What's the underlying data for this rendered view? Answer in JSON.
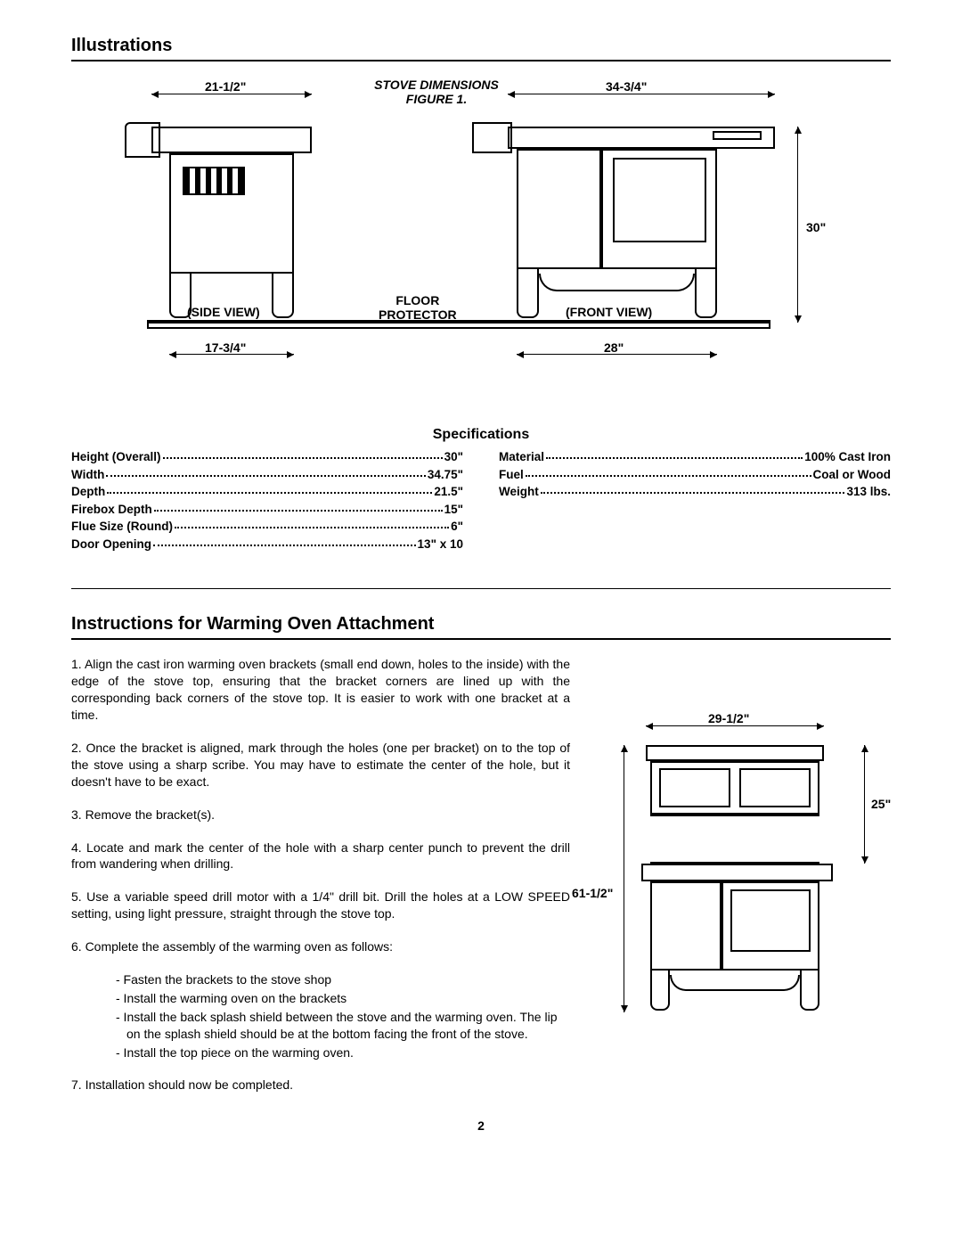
{
  "headings": {
    "illustrations": "Illustrations",
    "specifications": "Specifications",
    "instructions": "Instructions for Warming Oven Attachment"
  },
  "figure1": {
    "title_line1": "STOVE DIMENSIONS",
    "title_line2": "FIGURE 1.",
    "side_view_label": "(SIDE VIEW)",
    "front_view_label": "(FRONT VIEW)",
    "floor_protector_label1": "FLOOR",
    "floor_protector_label2": "PROTECTOR",
    "dim_top_left": "21-1/2\"",
    "dim_top_right": "34-3/4\"",
    "dim_right": "30\"",
    "dim_bottom_left": "17-3/4\"",
    "dim_bottom_right": "28\""
  },
  "specs_left": [
    {
      "label": "Height (Overall)",
      "value": "30\""
    },
    {
      "label": "Width",
      "value": "34.75\""
    },
    {
      "label": "Depth",
      "value": "21.5\""
    },
    {
      "label": "Firebox Depth",
      "value": "15\""
    },
    {
      "label": "Flue Size (Round)",
      "value": "6\""
    },
    {
      "label": "Door Opening",
      "value": "13\"  x  10"
    }
  ],
  "specs_right": [
    {
      "label": "Material",
      "value": "100% Cast Iron"
    },
    {
      "label": "Fuel",
      "value": "Coal or Wood"
    },
    {
      "label": "Weight",
      "value": "313 lbs."
    }
  ],
  "instructions": {
    "step1": "1.   Align the cast iron warming oven brackets (small end down, holes to the inside) with the edge of the stove top, ensuring that the bracket corners are lined up with the corresponding back corners of the stove top. It is easier to work with one bracket at a time.",
    "step2": "2.   Once the bracket is aligned, mark through the holes (one per bracket) on to the top of the stove using a sharp scribe.  You may have to estimate the center of the hole, but it doesn't have to be exact.",
    "step3": "3.   Remove the bracket(s).",
    "step4": "4.   Locate and mark the center of the hole with a sharp center punch to prevent the drill from wandering when drilling.",
    "step5": "5.   Use a variable speed drill motor with a 1/4\" drill bit.  Drill the holes at a LOW SPEED setting, using light pressure, straight through the stove top.",
    "step6_intro": "6.   Complete the assembly of the warming oven as follows:",
    "step6_items": [
      "-  Fasten the brackets to the stove shop",
      "-  Install the warming oven on the brackets",
      "-  Install the back splash shield between the stove and the warming oven.  The lip on the splash shield should be at the bottom facing the front of the stove.",
      "-  Install the top piece on the warming oven."
    ],
    "step7": "7.   Installation should now be completed."
  },
  "figure2": {
    "dim_top": "29-1/2\"",
    "dim_right": "25\"",
    "dim_left": "61-1/2\""
  },
  "page_number": "2"
}
